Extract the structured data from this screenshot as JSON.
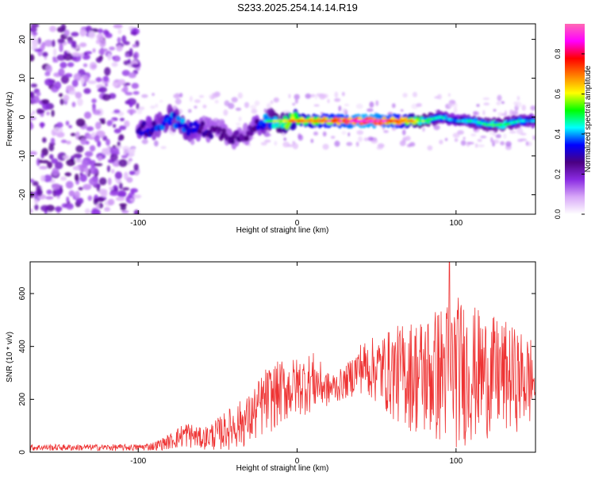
{
  "title": "S233.2025.254.14.14.R19",
  "chart_data": [
    {
      "type": "heatmap",
      "xlabel": "Height of straight line (km)",
      "ylabel": "Frequency (Hz)",
      "xlim": [
        -168,
        150
      ],
      "ylim": [
        -25,
        24
      ],
      "x_ticks": [
        -100,
        0,
        100
      ],
      "y_ticks": [
        -20,
        -10,
        0,
        10,
        20
      ],
      "colorbar": {
        "label": "Normalized spectral amplitude",
        "ticks": [
          0.0,
          0.2,
          0.4,
          0.6,
          0.8
        ],
        "range": [
          0.0,
          0.95
        ],
        "stops": [
          "#ffffff",
          "#d8a8f8",
          "#8a2be2",
          "#4b0082",
          "#0000ff",
          "#00ffff",
          "#00ff00",
          "#ffff00",
          "#ff8000",
          "#ff0000",
          "#ff00ff",
          "#ff69b4"
        ]
      },
      "noise_region_x": [
        -168,
        -100
      ],
      "ridge": [
        {
          "x": -100,
          "y": -3,
          "a": 0.35
        },
        {
          "x": -90,
          "y": -3,
          "a": 0.4
        },
        {
          "x": -80,
          "y": 0,
          "a": 0.45
        },
        {
          "x": -70,
          "y": -3,
          "a": 0.45
        },
        {
          "x": -60,
          "y": -3,
          "a": 0.35
        },
        {
          "x": -50,
          "y": -4,
          "a": 0.3
        },
        {
          "x": -40,
          "y": -5,
          "a": 0.3
        },
        {
          "x": -30,
          "y": -4,
          "a": 0.3
        },
        {
          "x": -20,
          "y": -1,
          "a": 0.45
        },
        {
          "x": -10,
          "y": -1,
          "a": 0.6
        },
        {
          "x": 0,
          "y": -1,
          "a": 0.7
        },
        {
          "x": 10,
          "y": -1,
          "a": 0.72
        },
        {
          "x": 20,
          "y": -1,
          "a": 0.78
        },
        {
          "x": 30,
          "y": -1,
          "a": 0.82
        },
        {
          "x": 40,
          "y": -1,
          "a": 0.9
        },
        {
          "x": 50,
          "y": -1,
          "a": 0.88
        },
        {
          "x": 60,
          "y": -1,
          "a": 0.82
        },
        {
          "x": 70,
          "y": -1,
          "a": 0.7
        },
        {
          "x": 80,
          "y": -1,
          "a": 0.55
        },
        {
          "x": 90,
          "y": 0,
          "a": 0.45
        },
        {
          "x": 100,
          "y": -1,
          "a": 0.38
        },
        {
          "x": 110,
          "y": -1,
          "a": 0.45
        },
        {
          "x": 120,
          "y": -2,
          "a": 0.5
        },
        {
          "x": 130,
          "y": -2,
          "a": 0.5
        },
        {
          "x": 140,
          "y": -1,
          "a": 0.45
        },
        {
          "x": 150,
          "y": -1,
          "a": 0.4
        }
      ]
    },
    {
      "type": "line",
      "xlabel": "Height of straight line (km)",
      "ylabel": "SNR (10 * v/v)",
      "xlim": [
        -168,
        150
      ],
      "ylim": [
        0,
        720
      ],
      "x_ticks": [
        -100,
        0,
        100
      ],
      "y_ticks": [
        0,
        200,
        400,
        600
      ],
      "color": "#ee3333",
      "envelope": [
        {
          "x": -168,
          "lo": 5,
          "hi": 30
        },
        {
          "x": -100,
          "lo": 5,
          "hi": 30
        },
        {
          "x": -90,
          "lo": 5,
          "hi": 40
        },
        {
          "x": -80,
          "lo": 10,
          "hi": 70
        },
        {
          "x": -70,
          "lo": 15,
          "hi": 120
        },
        {
          "x": -60,
          "lo": 10,
          "hi": 90
        },
        {
          "x": -50,
          "lo": 5,
          "hi": 130
        },
        {
          "x": -40,
          "lo": 10,
          "hi": 180
        },
        {
          "x": -30,
          "lo": 20,
          "hi": 220
        },
        {
          "x": -20,
          "lo": 60,
          "hi": 320
        },
        {
          "x": -10,
          "lo": 100,
          "hi": 350
        },
        {
          "x": 0,
          "lo": 130,
          "hi": 360
        },
        {
          "x": 10,
          "lo": 150,
          "hi": 380
        },
        {
          "x": 20,
          "lo": 170,
          "hi": 300
        },
        {
          "x": 30,
          "lo": 200,
          "hi": 320
        },
        {
          "x": 40,
          "lo": 220,
          "hi": 420
        },
        {
          "x": 50,
          "lo": 180,
          "hi": 440
        },
        {
          "x": 60,
          "lo": 120,
          "hi": 470
        },
        {
          "x": 70,
          "lo": 80,
          "hi": 500
        },
        {
          "x": 80,
          "lo": 40,
          "hi": 520
        },
        {
          "x": 90,
          "lo": 20,
          "hi": 560
        },
        {
          "x": 100,
          "lo": 10,
          "hi": 600
        },
        {
          "x": 110,
          "lo": 30,
          "hi": 560
        },
        {
          "x": 120,
          "lo": 50,
          "hi": 520
        },
        {
          "x": 130,
          "lo": 60,
          "hi": 500
        },
        {
          "x": 140,
          "lo": 80,
          "hi": 460
        },
        {
          "x": 150,
          "lo": 90,
          "hi": 440
        }
      ],
      "peak": {
        "x": 96,
        "y": 720
      }
    }
  ]
}
